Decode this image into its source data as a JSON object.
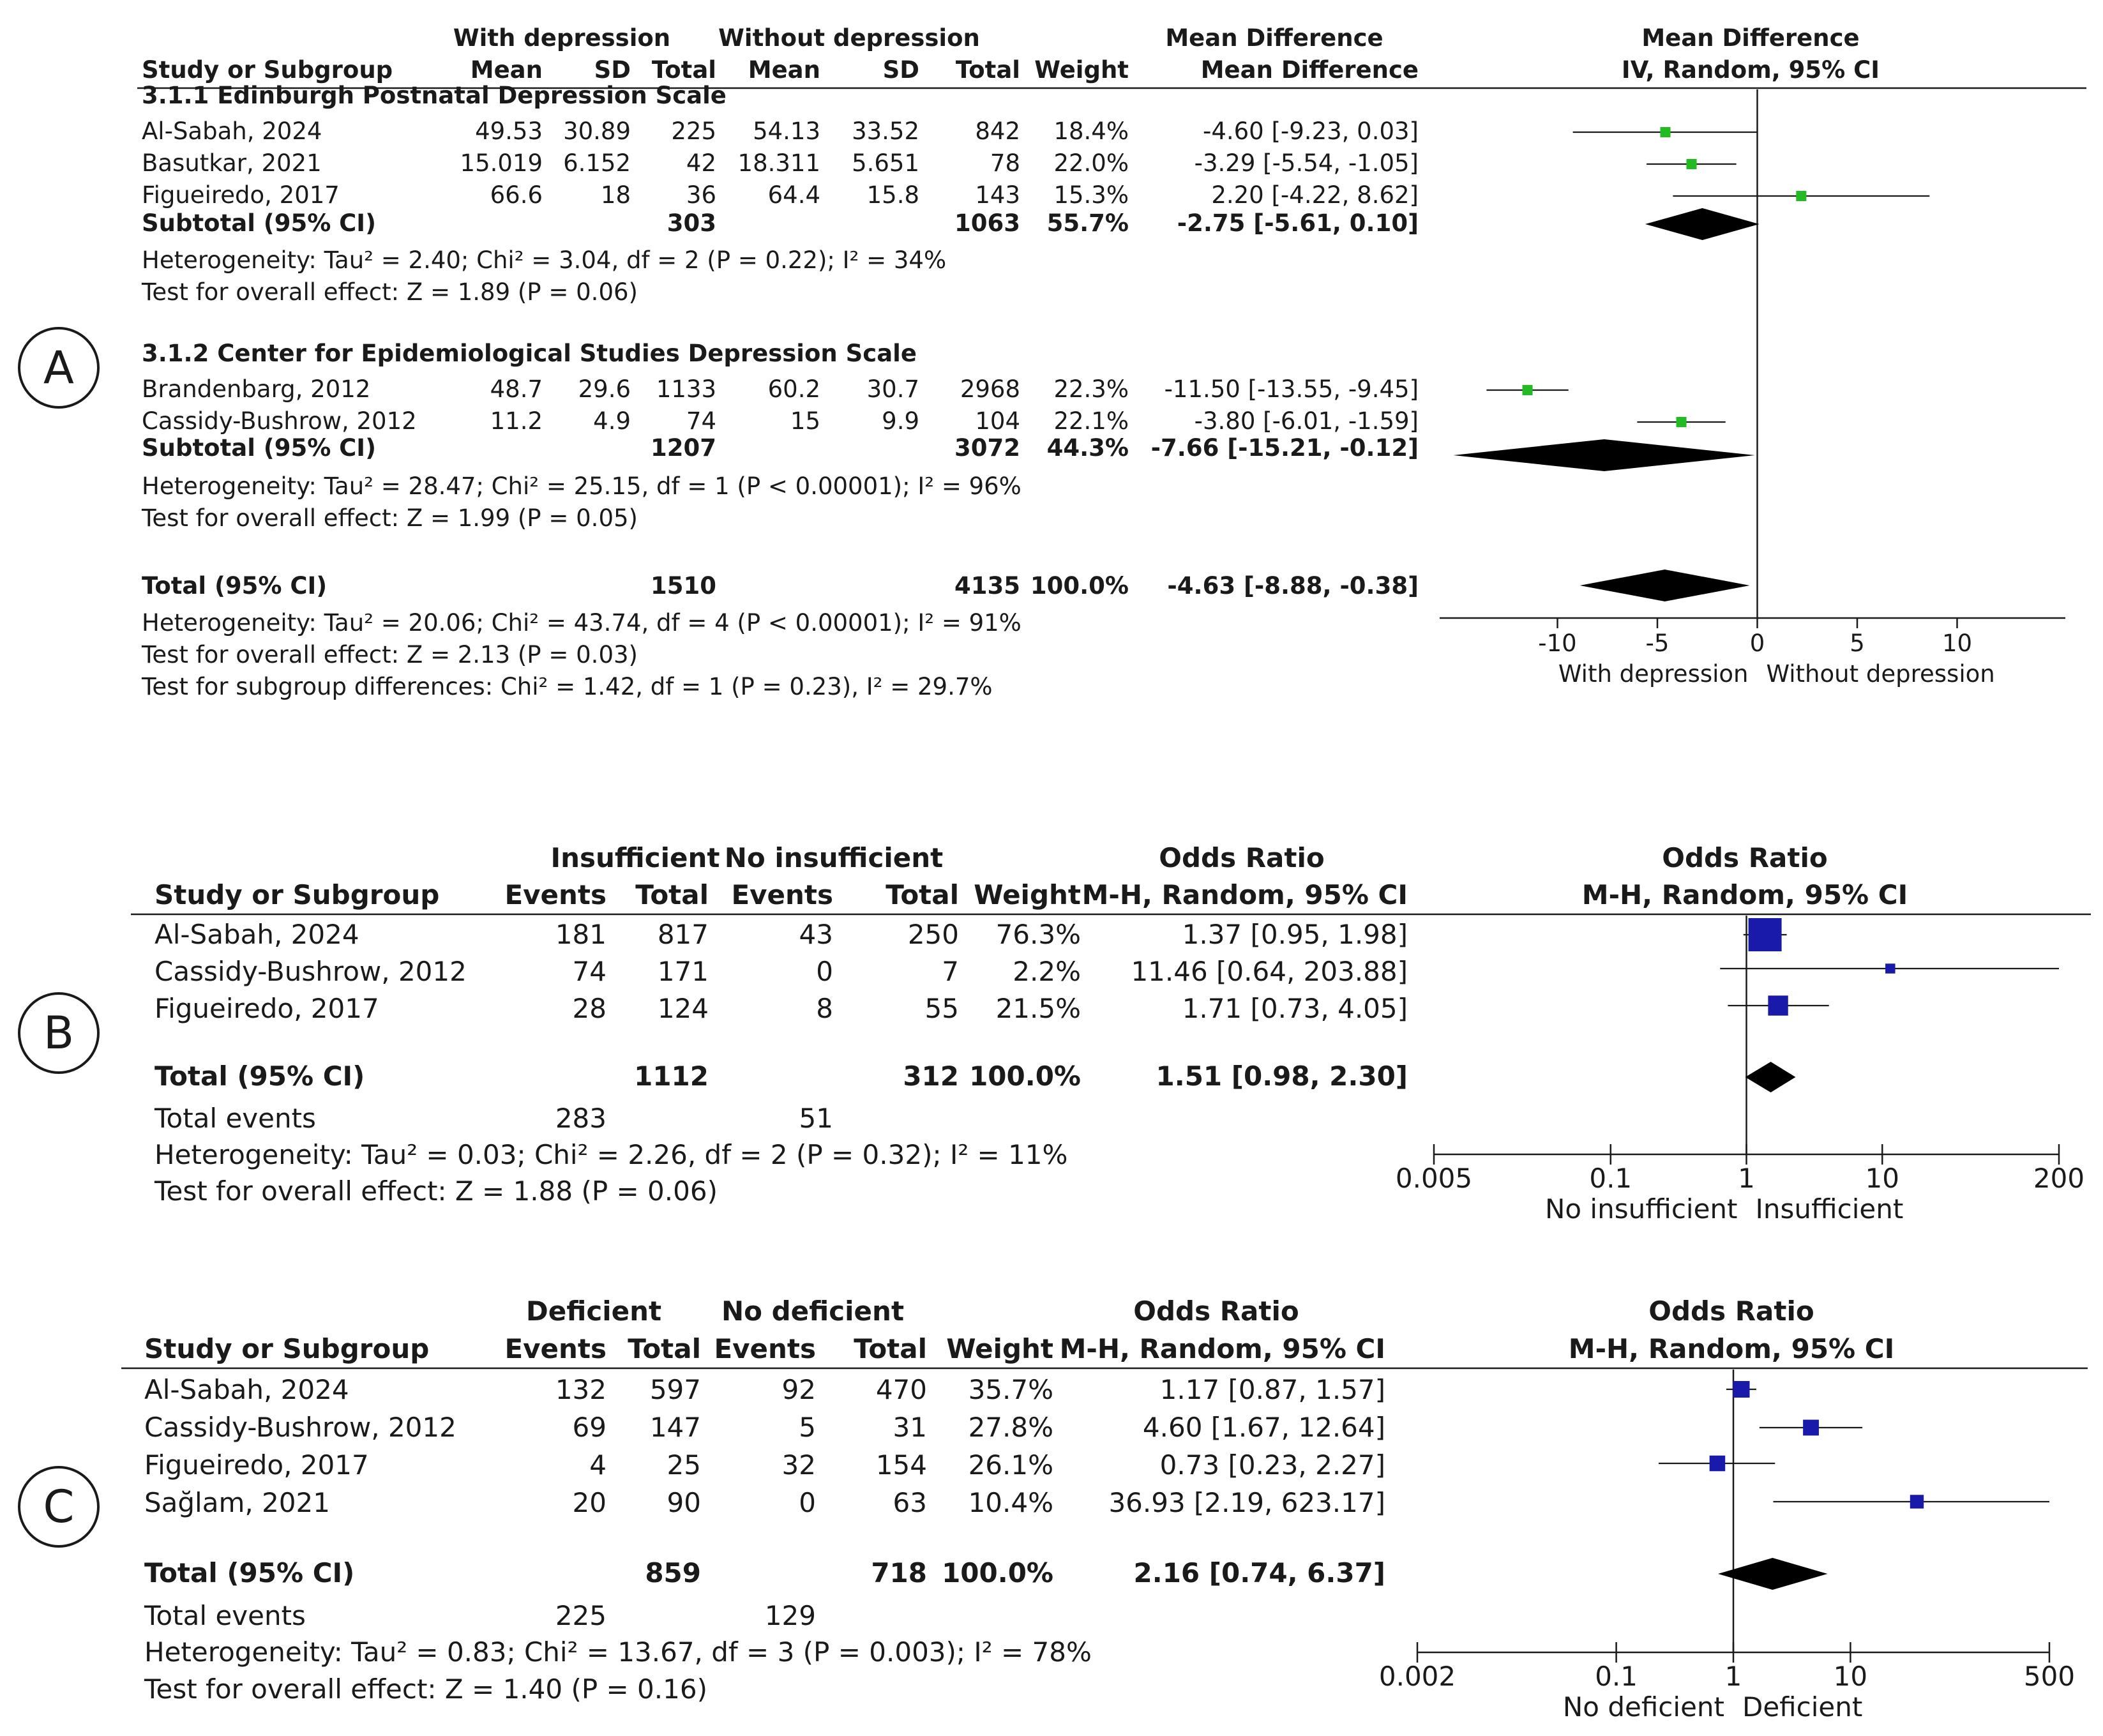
{
  "panels": [
    {
      "id": "A",
      "label": "A",
      "group_headers": [
        "With depression",
        "Without depression"
      ],
      "columns": [
        "Study or Subgroup",
        "Mean",
        "SD",
        "Total",
        "Mean",
        "SD",
        "Total",
        "Weight",
        "Mean Difference",
        "IV, Random, 95% CI"
      ],
      "plot_title": [
        "Mean Difference",
        "IV, Random, 95% CI"
      ],
      "subgroups": [
        {
          "title": "3.1.1 Edinburgh Postnatal Depression Scale",
          "rows": [
            {
              "study": "Al-Sabah, 2024",
              "cells": [
                "49.53",
                "30.89",
                "225",
                "54.13",
                "33.52",
                "842",
                "18.4%"
              ],
              "ci_text": "-4.60 [-9.23, 0.03]"
            },
            {
              "study": "Basutkar, 2021",
              "cells": [
                "15.019",
                "6.152",
                "42",
                "18.311",
                "5.651",
                "78",
                "22.0%"
              ],
              "ci_text": "-3.29 [-5.54, -1.05]"
            },
            {
              "study": "Figueiredo, 2017",
              "cells": [
                "66.6",
                "18",
                "36",
                "64.4",
                "15.8",
                "143",
                "15.3%"
              ],
              "ci_text": "2.20 [-4.22, 8.62]"
            }
          ],
          "subtotal": {
            "label": "Subtotal (95% CI)",
            "total1": "303",
            "total2": "1063",
            "weight": "55.7%",
            "ci_text": "-2.75 [-5.61, 0.10]"
          },
          "heterogeneity": "Heterogeneity: Tau² = 2.40; Chi² = 3.04, df = 2 (P = 0.22); I² = 34%",
          "overall": "Test for overall effect: Z = 1.89 (P = 0.06)"
        },
        {
          "title": "3.1.2 Center for Epidemiological Studies Depression Scale",
          "rows": [
            {
              "study": "Brandenbarg, 2012",
              "cells": [
                "48.7",
                "29.6",
                "1133",
                "60.2",
                "30.7",
                "2968",
                "22.3%"
              ],
              "ci_text": "-11.50 [-13.55, -9.45]"
            },
            {
              "study": "Cassidy-Bushrow, 2012",
              "cells": [
                "11.2",
                "4.9",
                "74",
                "15",
                "9.9",
                "104",
                "22.1%"
              ],
              "ci_text": "-3.80 [-6.01, -1.59]"
            }
          ],
          "subtotal": {
            "label": "Subtotal (95% CI)",
            "total1": "1207",
            "total2": "3072",
            "weight": "44.3%",
            "ci_text": "-7.66 [-15.21, -0.12]"
          },
          "heterogeneity": "Heterogeneity: Tau² = 28.47; Chi² = 25.15, df = 1 (P < 0.00001); I² = 96%",
          "overall": "Test for overall effect: Z = 1.99 (P = 0.05)"
        }
      ],
      "total": {
        "label": "Total (95% CI)",
        "total1": "1510",
        "total2": "4135",
        "weight": "100.0%",
        "ci_text": "-4.63 [-8.88, -0.38]"
      },
      "footer": [
        "Heterogeneity: Tau² = 20.06; Chi² = 43.74, df = 4 (P < 0.00001); I² = 91%",
        "Test for overall effect: Z = 2.13 (P = 0.03)",
        "Test for subgroup differences: Chi² = 1.42, df = 1 (P = 0.23), I² = 29.7%"
      ],
      "axis_labels": [
        "With depression",
        "Without depression"
      ]
    },
    {
      "id": "B",
      "label": "B",
      "group_headers": [
        "Insufficient",
        "No insufficient"
      ],
      "columns": [
        "Study or Subgroup",
        "Events",
        "Total",
        "Events",
        "Total",
        "Weight",
        "M-H, Random, 95% CI"
      ],
      "table_title": "Odds Ratio",
      "plot_title": [
        "Odds Ratio",
        "M-H, Random, 95% CI"
      ],
      "rows": [
        {
          "study": "Al-Sabah, 2024",
          "cells": [
            "181",
            "817",
            "43",
            "250",
            "76.3%"
          ],
          "ci_text": "1.37 [0.95, 1.98]"
        },
        {
          "study": "Cassidy-Bushrow, 2012",
          "cells": [
            "74",
            "171",
            "0",
            "7",
            "2.2%"
          ],
          "ci_text": "11.46 [0.64, 203.88]"
        },
        {
          "study": "Figueiredo, 2017",
          "cells": [
            "28",
            "124",
            "8",
            "55",
            "21.5%"
          ],
          "ci_text": "1.71 [0.73, 4.05]"
        }
      ],
      "total": {
        "label": "Total (95% CI)",
        "total1": "1112",
        "total2": "312",
        "weight": "100.0%",
        "ci_text": "1.51 [0.98, 2.30]"
      },
      "total_events": {
        "label": "Total events",
        "e1": "283",
        "e2": "51"
      },
      "footer": [
        "Heterogeneity: Tau² = 0.03; Chi² = 2.26, df = 2 (P = 0.32); I² = 11%",
        "Test for overall effect: Z = 1.88 (P = 0.06)"
      ],
      "axis_labels": [
        "No insufficient",
        "Insufficient"
      ]
    },
    {
      "id": "C",
      "label": "C",
      "group_headers": [
        "Deficient",
        "No deficient"
      ],
      "columns": [
        "Study or Subgroup",
        "Events",
        "Total",
        "Events",
        "Total",
        "Weight",
        "M-H, Random, 95% CI"
      ],
      "table_title": "Odds Ratio",
      "plot_title": [
        "Odds Ratio",
        "M-H, Random, 95% CI"
      ],
      "rows": [
        {
          "study": "Al-Sabah, 2024",
          "cells": [
            "132",
            "597",
            "92",
            "470",
            "35.7%"
          ],
          "ci_text": "1.17 [0.87, 1.57]"
        },
        {
          "study": "Cassidy-Bushrow, 2012",
          "cells": [
            "69",
            "147",
            "5",
            "31",
            "27.8%"
          ],
          "ci_text": "4.60 [1.67, 12.64]"
        },
        {
          "study": "Figueiredo, 2017",
          "cells": [
            "4",
            "25",
            "32",
            "154",
            "26.1%"
          ],
          "ci_text": "0.73 [0.23, 2.27]"
        },
        {
          "study": "Sağlam, 2021",
          "cells": [
            "20",
            "90",
            "0",
            "63",
            "10.4%"
          ],
          "ci_text": "36.93 [2.19, 623.17]"
        }
      ],
      "total": {
        "label": "Total (95% CI)",
        "total1": "859",
        "total2": "718",
        "weight": "100.0%",
        "ci_text": "2.16 [0.74, 6.37]"
      },
      "total_events": {
        "label": "Total events",
        "e1": "225",
        "e2": "129"
      },
      "footer": [
        "Heterogeneity: Tau² = 0.83; Chi² = 13.67, df = 3 (P = 0.003); I² = 78%",
        "Test for overall effect: Z = 1.40 (P = 0.16)"
      ],
      "axis_labels": [
        "No deficient",
        "Deficient"
      ]
    }
  ],
  "colors": {
    "marker_A": "#22bb22",
    "marker_BC": "#1a1aaa",
    "diamond": "#000000",
    "text": "#1a1a1a"
  },
  "chart_data": [
    {
      "type": "forest",
      "panel": "A",
      "scale": "linear",
      "xlim": [
        -15,
        15
      ],
      "ticks": [
        -10,
        -5,
        0,
        5,
        10
      ],
      "tick_labels": [
        "-10",
        "-5",
        "0",
        "5",
        "10"
      ],
      "studies": [
        {
          "name": "Al-Sabah, 2024",
          "estimate": -4.6,
          "lower": -9.23,
          "upper": 0.03,
          "weight": 18.4
        },
        {
          "name": "Basutkar, 2021",
          "estimate": -3.29,
          "lower": -5.54,
          "upper": -1.05,
          "weight": 22.0
        },
        {
          "name": "Figueiredo, 2017",
          "estimate": 2.2,
          "lower": -4.22,
          "upper": 8.62,
          "weight": 15.3
        },
        {
          "name": "Brandenbarg, 2012",
          "estimate": -11.5,
          "lower": -13.55,
          "upper": -9.45,
          "weight": 22.3
        },
        {
          "name": "Cassidy-Bushrow, 2012",
          "estimate": -3.8,
          "lower": -6.01,
          "upper": -1.59,
          "weight": 22.1
        }
      ],
      "diamonds": [
        {
          "name": "Subtotal (95% CI)",
          "estimate": -2.75,
          "lower": -5.61,
          "upper": 0.1
        },
        {
          "name": "Subtotal (95% CI)",
          "estimate": -7.66,
          "lower": -15.21,
          "upper": -0.12
        },
        {
          "name": "Total (95% CI)",
          "estimate": -4.63,
          "lower": -8.88,
          "upper": -0.38
        }
      ]
    },
    {
      "type": "forest",
      "panel": "B",
      "scale": "log",
      "xlim": [
        0.005,
        200
      ],
      "ticks": [
        0.005,
        0.1,
        1,
        10,
        200
      ],
      "tick_labels": [
        "0.005",
        "0.1",
        "1",
        "10",
        "200"
      ],
      "studies": [
        {
          "name": "Al-Sabah, 2024",
          "estimate": 1.37,
          "lower": 0.95,
          "upper": 1.98,
          "weight": 76.3
        },
        {
          "name": "Cassidy-Bushrow, 2012",
          "estimate": 11.46,
          "lower": 0.64,
          "upper": 203.88,
          "weight": 2.2
        },
        {
          "name": "Figueiredo, 2017",
          "estimate": 1.71,
          "lower": 0.73,
          "upper": 4.05,
          "weight": 21.5
        }
      ],
      "diamonds": [
        {
          "name": "Total (95% CI)",
          "estimate": 1.51,
          "lower": 0.98,
          "upper": 2.3
        }
      ]
    },
    {
      "type": "forest",
      "panel": "C",
      "scale": "log",
      "xlim": [
        0.002,
        500
      ],
      "ticks": [
        0.002,
        0.1,
        1,
        10,
        500
      ],
      "tick_labels": [
        "0.002",
        "0.1",
        "1",
        "10",
        "500"
      ],
      "studies": [
        {
          "name": "Al-Sabah, 2024",
          "estimate": 1.17,
          "lower": 0.87,
          "upper": 1.57,
          "weight": 35.7
        },
        {
          "name": "Cassidy-Bushrow, 2012",
          "estimate": 4.6,
          "lower": 1.67,
          "upper": 12.64,
          "weight": 27.8
        },
        {
          "name": "Figueiredo, 2017",
          "estimate": 0.73,
          "lower": 0.23,
          "upper": 2.27,
          "weight": 26.1
        },
        {
          "name": "Sağlam, 2021",
          "estimate": 36.93,
          "lower": 2.19,
          "upper": 623.17,
          "weight": 10.4
        }
      ],
      "diamonds": [
        {
          "name": "Total (95% CI)",
          "estimate": 2.16,
          "lower": 0.74,
          "upper": 6.37
        }
      ]
    }
  ]
}
